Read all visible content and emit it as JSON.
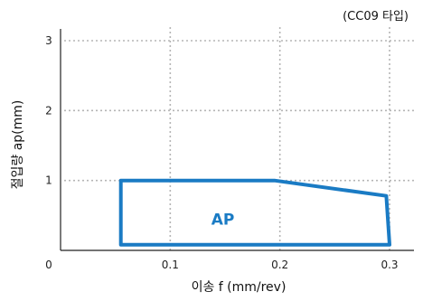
{
  "chart_data": {
    "type": "area",
    "subtitle": "(CC09 타입)",
    "xlabel": "이송 f (mm/rev)",
    "ylabel": "절입량 ap(mm)",
    "xlim": [
      0,
      0.3
    ],
    "ylim": [
      0,
      3
    ],
    "x_ticks": [
      0.1,
      0.2,
      0.3
    ],
    "x_tick_labels": [
      "0.1",
      "0.2",
      "0.3"
    ],
    "y_ticks": [
      1,
      2,
      3
    ],
    "y_tick_labels": [
      "1",
      "2",
      "3"
    ],
    "origin_label": "0",
    "grid": true,
    "region": {
      "label": "AP",
      "color": "#1a7bc4",
      "points": [
        {
          "x": 0.055,
          "y": 0.08
        },
        {
          "x": 0.055,
          "y": 1.0
        },
        {
          "x": 0.195,
          "y": 1.0
        },
        {
          "x": 0.297,
          "y": 0.78
        },
        {
          "x": 0.3,
          "y": 0.08
        }
      ]
    }
  }
}
